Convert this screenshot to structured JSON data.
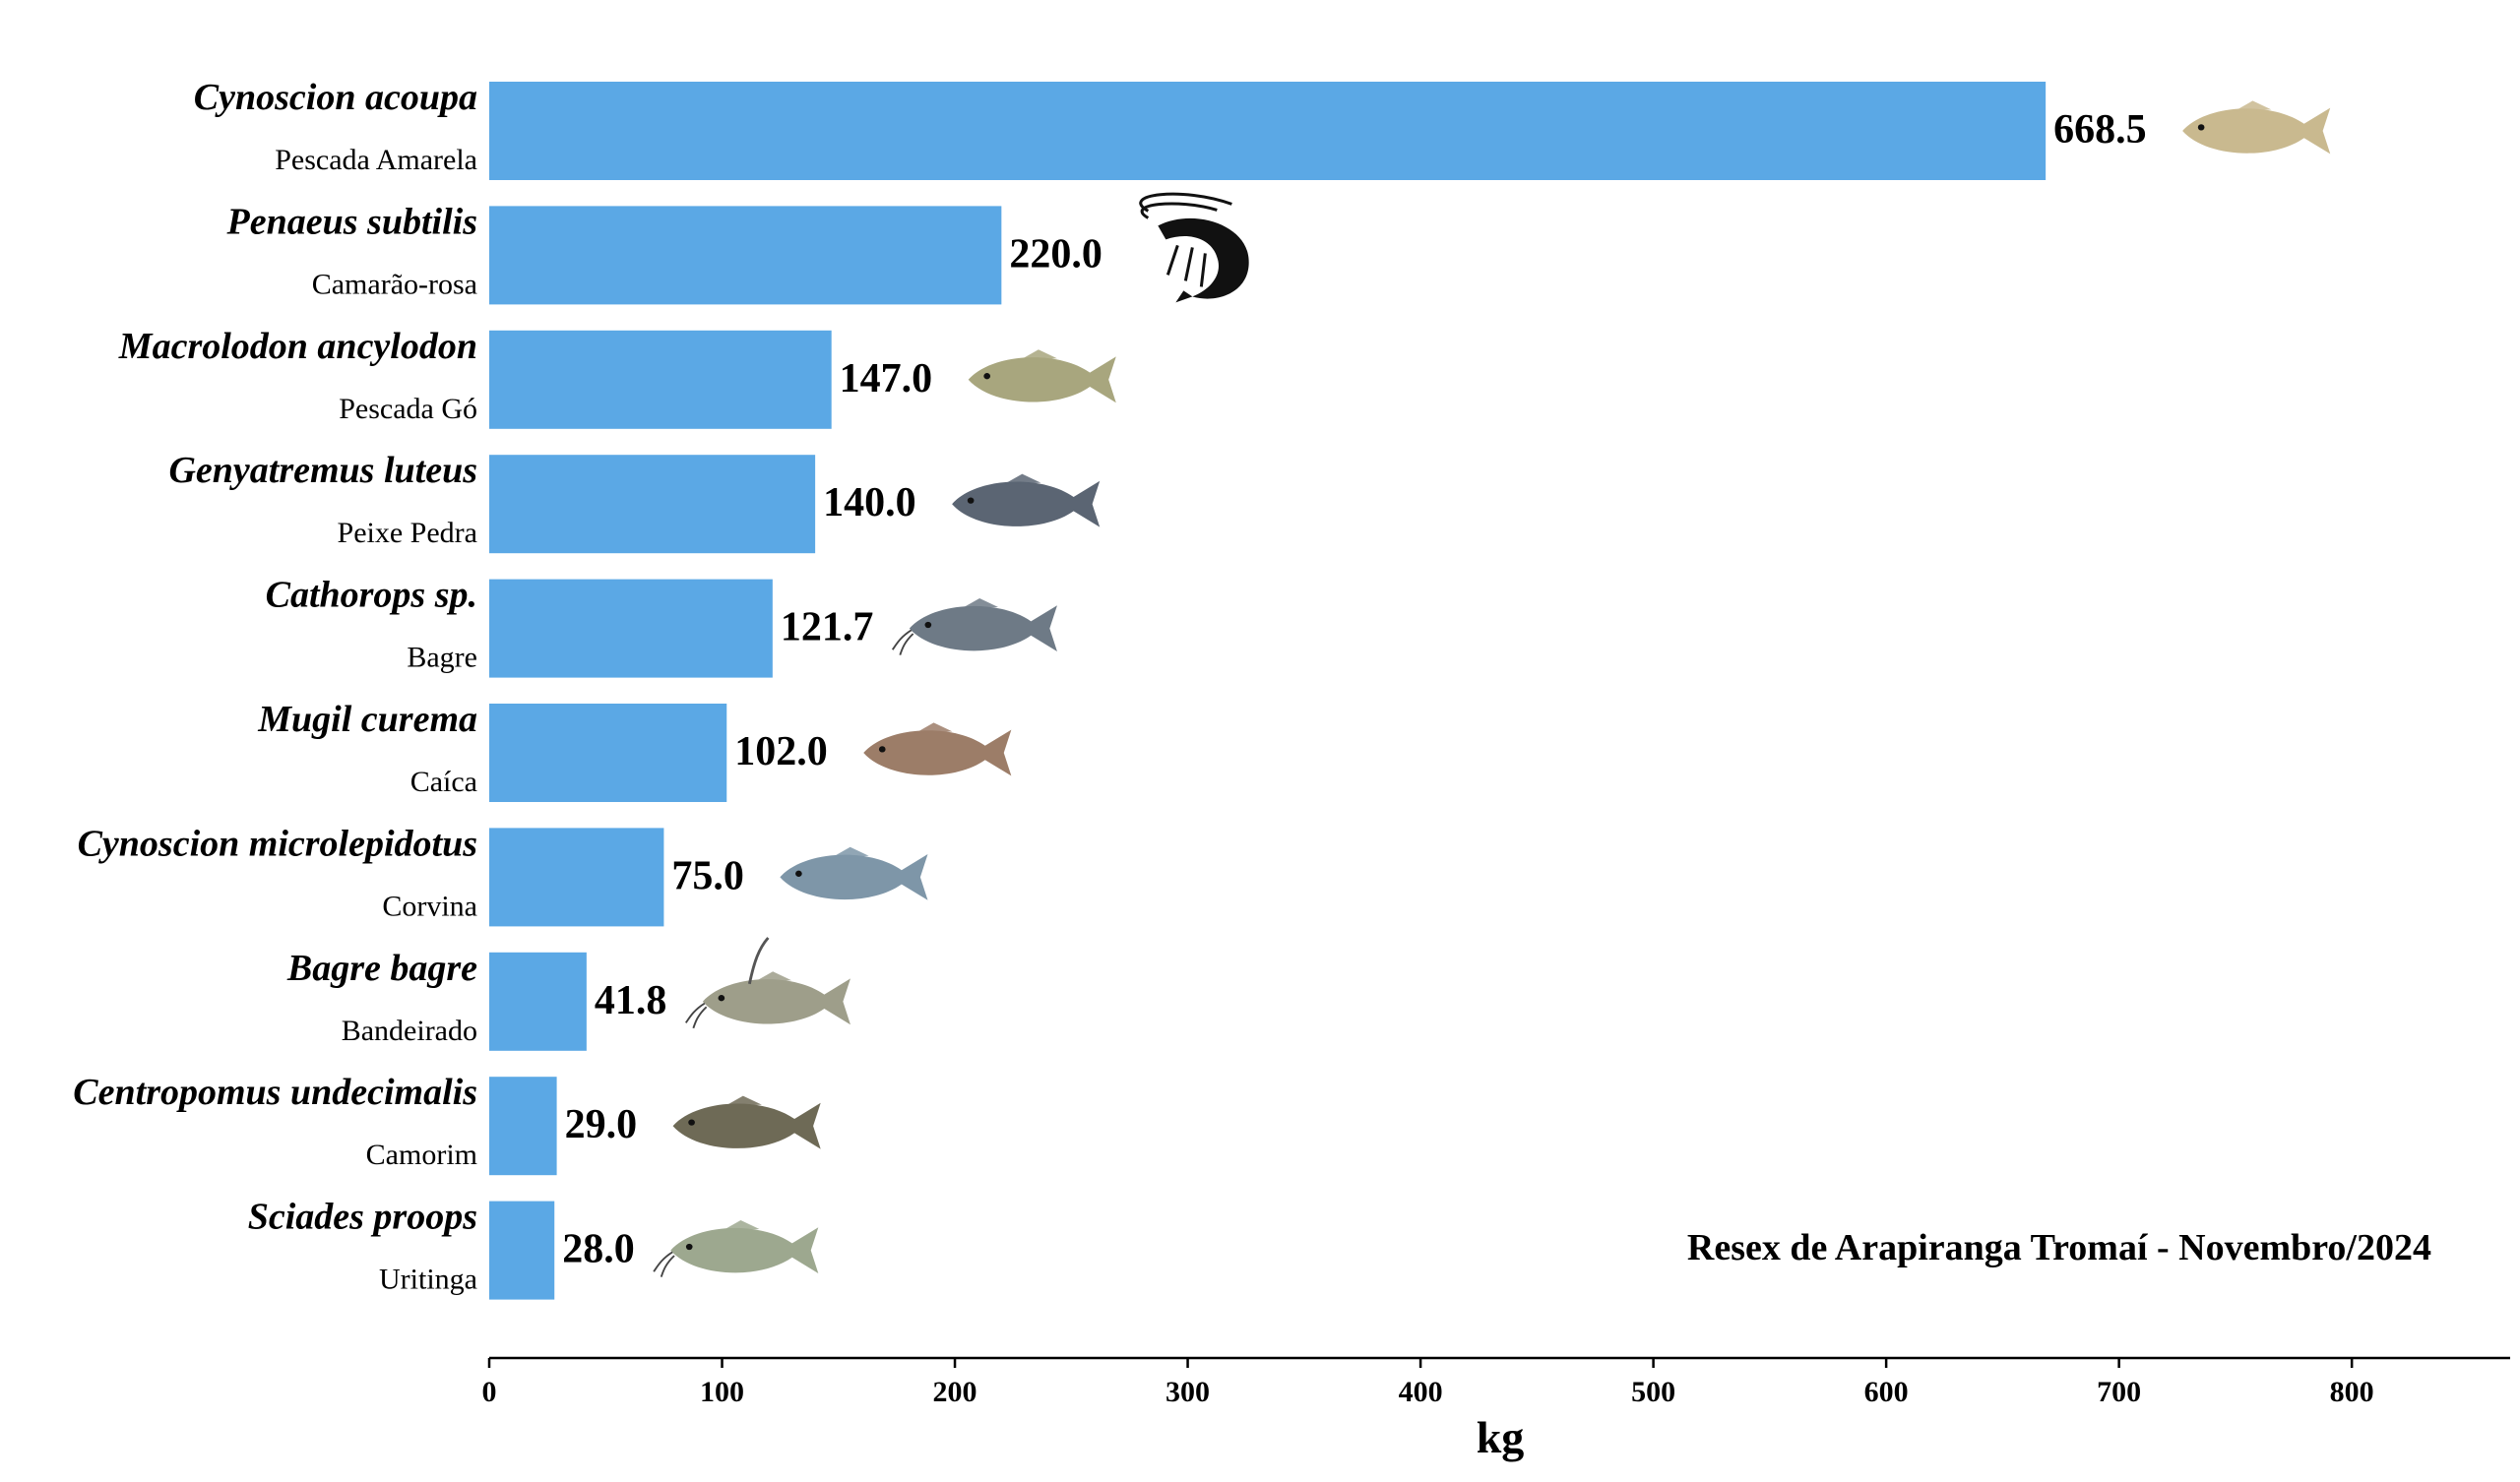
{
  "chart_data": {
    "type": "bar",
    "orientation": "horizontal",
    "categories": [
      {
        "scientific": "Cynoscion acoupa",
        "common": "Pescada Amarela",
        "icon": "yellow-croaker-fish-icon"
      },
      {
        "scientific": "Penaeus subtilis",
        "common": "Camarão-rosa",
        "icon": "shrimp-icon"
      },
      {
        "scientific": "Macrolodon ancylodon",
        "common": "Pescada Gó",
        "icon": "weakfish-icon"
      },
      {
        "scientific": "Genyatremus luteus",
        "common": "Peixe Pedra",
        "icon": "grunt-fish-icon"
      },
      {
        "scientific": "Cathorops sp.",
        "common": "Bagre",
        "icon": "catfish-icon"
      },
      {
        "scientific": "Mugil curema",
        "common": "Caíca",
        "icon": "mullet-fish-icon"
      },
      {
        "scientific": "Cynoscion microlepidotus",
        "common": "Corvina",
        "icon": "corvina-fish-icon"
      },
      {
        "scientific": "Bagre bagre",
        "common": "Bandeirado",
        "icon": "flag-catfish-icon"
      },
      {
        "scientific": "Centropomus undecimalis",
        "common": "Camorim",
        "icon": "snook-fish-icon"
      },
      {
        "scientific": "Sciades proops",
        "common": "Uritinga",
        "icon": "sea-catfish-icon"
      }
    ],
    "values": [
      668.5,
      220.0,
      147.0,
      140.0,
      121.7,
      102.0,
      75.0,
      41.8,
      29.0,
      28.0
    ],
    "value_labels": [
      "668.5",
      "220.0",
      "147.0",
      "140.0",
      "121.7",
      "102.0",
      "75.0",
      "41.8",
      "29.0",
      "28.0"
    ],
    "xlabel": "kg",
    "xticks": [
      0,
      100,
      200,
      300,
      400,
      500,
      600,
      700,
      800
    ],
    "xlim": [
      0,
      868
    ],
    "annotation": "Resex de Arapiranga Tromaí - Novembro/2024",
    "grid": false,
    "bar_color": "#5BA8E5"
  }
}
